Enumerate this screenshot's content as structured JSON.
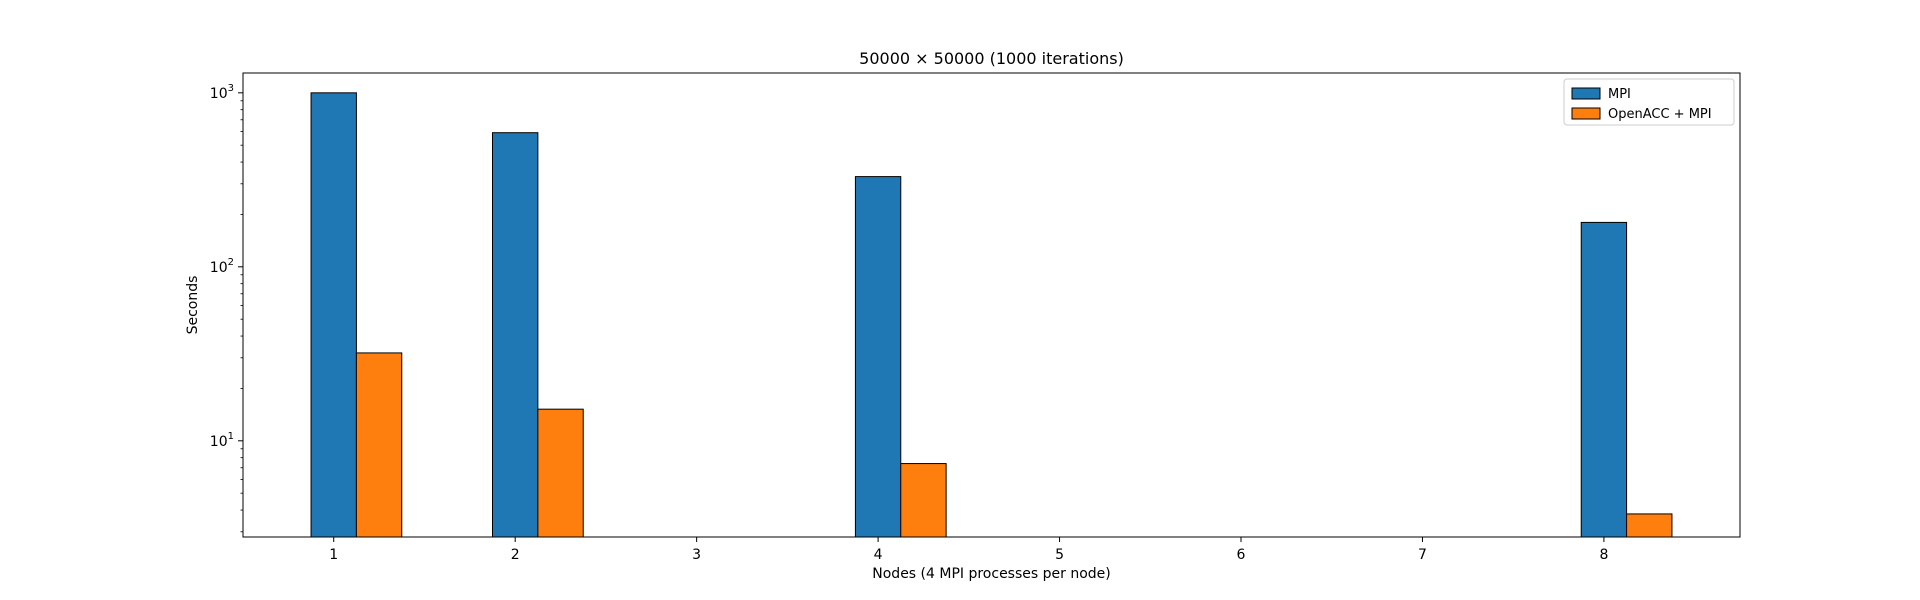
{
  "chart_data": {
    "type": "bar",
    "title": "50000 × 50000 (1000 iterations)",
    "xlabel": "Nodes (4 MPI processes per node)",
    "ylabel": "Seconds",
    "yscale": "log",
    "ylim": [
      2.8,
      1300
    ],
    "xlim": [
      0.5,
      8.75
    ],
    "x_ticks": [
      1,
      2,
      3,
      4,
      5,
      6,
      7,
      8
    ],
    "y_major_ticks": [
      {
        "value": 10,
        "base": "10",
        "exp": "1"
      },
      {
        "value": 100,
        "base": "10",
        "exp": "2"
      },
      {
        "value": 1000,
        "base": "10",
        "exp": "3"
      }
    ],
    "bar_width": 0.25,
    "series": [
      {
        "name": "MPI",
        "color": "#1f77b4",
        "offset": 0,
        "x": [
          1,
          2,
          4,
          8
        ],
        "values": [
          1000,
          590,
          330,
          180
        ]
      },
      {
        "name": "OpenACC + MPI",
        "color": "#ff7f0e",
        "offset": 0.25,
        "x": [
          1,
          2,
          4,
          8
        ],
        "values": [
          32,
          15.2,
          7.4,
          3.8
        ]
      }
    ],
    "legend": "top-right",
    "grid": false
  }
}
